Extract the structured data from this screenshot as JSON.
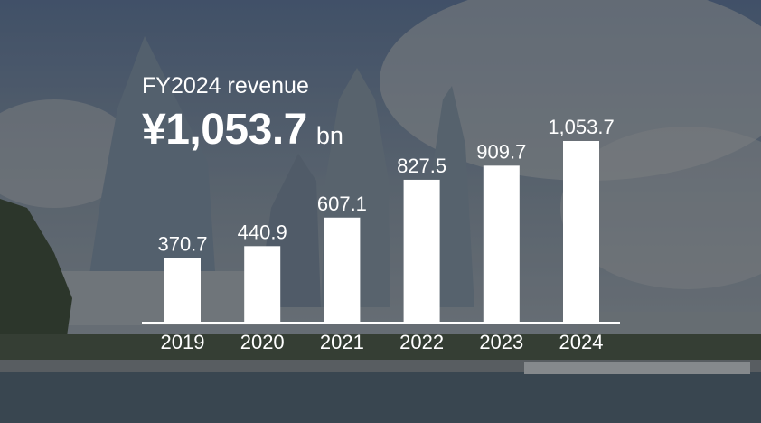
{
  "headline": {
    "label": "FY2024 revenue",
    "value": "¥1,053.7",
    "unit": "bn"
  },
  "chart_data": {
    "type": "bar",
    "categories": [
      "2019",
      "2020",
      "2021",
      "2022",
      "2023",
      "2024"
    ],
    "values": [
      370.7,
      440.9,
      607.1,
      827.5,
      909.7,
      1053.7
    ],
    "value_labels": [
      "370.7",
      "440.9",
      "607.1",
      "827.5",
      "909.7",
      "1,053.7"
    ],
    "title": "",
    "xlabel": "",
    "ylabel": "",
    "ylim": [
      0,
      1053.7
    ],
    "grid": false,
    "bar_color": "#ffffff",
    "label_color": "#ffffff"
  },
  "colors": {
    "overlay": "#000000",
    "sky": "#7d8c9c",
    "building": "#8e9aa6",
    "water": "#4f6270"
  }
}
